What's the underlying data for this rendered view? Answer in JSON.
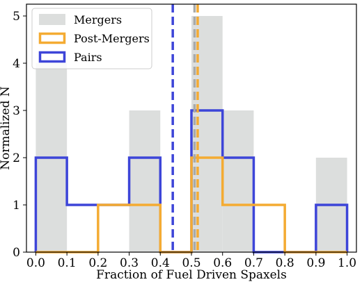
{
  "chart_data": {
    "type": "histogram",
    "xlabel": "Fraction of Fuel Driven Spaxels",
    "ylabel": "Normalized N",
    "xlim": [
      -0.03,
      1.03
    ],
    "ylim": [
      0,
      5.25
    ],
    "xticks": [
      "0.0",
      "0.1",
      "0.2",
      "0.3",
      "0.4",
      "0.5",
      "0.6",
      "0.7",
      "0.8",
      "0.9",
      "1.0"
    ],
    "yticks": [
      "0",
      "1",
      "2",
      "3",
      "4",
      "5"
    ],
    "bin_edges": [
      0.0,
      0.1,
      0.2,
      0.3,
      0.4,
      0.5,
      0.6,
      0.7,
      0.8,
      0.9,
      1.0
    ],
    "legend_position": "top-left",
    "series": [
      {
        "name": "Mergers",
        "style": "filled",
        "color": "#dcdedd",
        "values": [
          4,
          0,
          0,
          3,
          0,
          5,
          3,
          0,
          0,
          2
        ],
        "median": 0.51
      },
      {
        "name": "Post-Mergers",
        "style": "step",
        "color": "#f4ab32",
        "values": [
          0,
          0,
          1,
          1,
          0,
          2,
          1,
          1,
          0,
          0
        ],
        "median": 0.52
      },
      {
        "name": "Pairs",
        "style": "step",
        "color": "#3d45d8",
        "values": [
          2,
          1,
          1,
          2,
          0,
          3,
          2,
          0,
          0,
          1
        ],
        "median": 0.44
      }
    ]
  }
}
